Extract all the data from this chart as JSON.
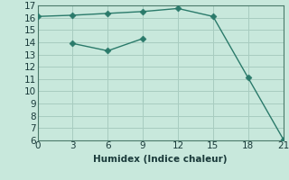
{
  "xlabel": "Humidex (Indice chaleur)",
  "line1_x": [
    0,
    3,
    6,
    9,
    12,
    15,
    18,
    21
  ],
  "line1_y": [
    16.1,
    16.2,
    16.35,
    16.5,
    16.75,
    16.1,
    11.1,
    6.1
  ],
  "line2_x": [
    3,
    6,
    9
  ],
  "line2_y": [
    13.9,
    13.3,
    14.3
  ],
  "line_color": "#2a7a6a",
  "bg_color": "#c8e8dc",
  "grid_color": "#a8ccc0",
  "xlim": [
    0,
    21
  ],
  "ylim": [
    6,
    17
  ],
  "xticks": [
    0,
    3,
    6,
    9,
    12,
    15,
    18,
    21
  ],
  "yticks": [
    6,
    7,
    8,
    9,
    10,
    11,
    12,
    13,
    14,
    15,
    16,
    17
  ],
  "markersize": 3.5,
  "linewidth": 1.0,
  "xlabel_fontsize": 7.5,
  "tick_fontsize": 7.5
}
